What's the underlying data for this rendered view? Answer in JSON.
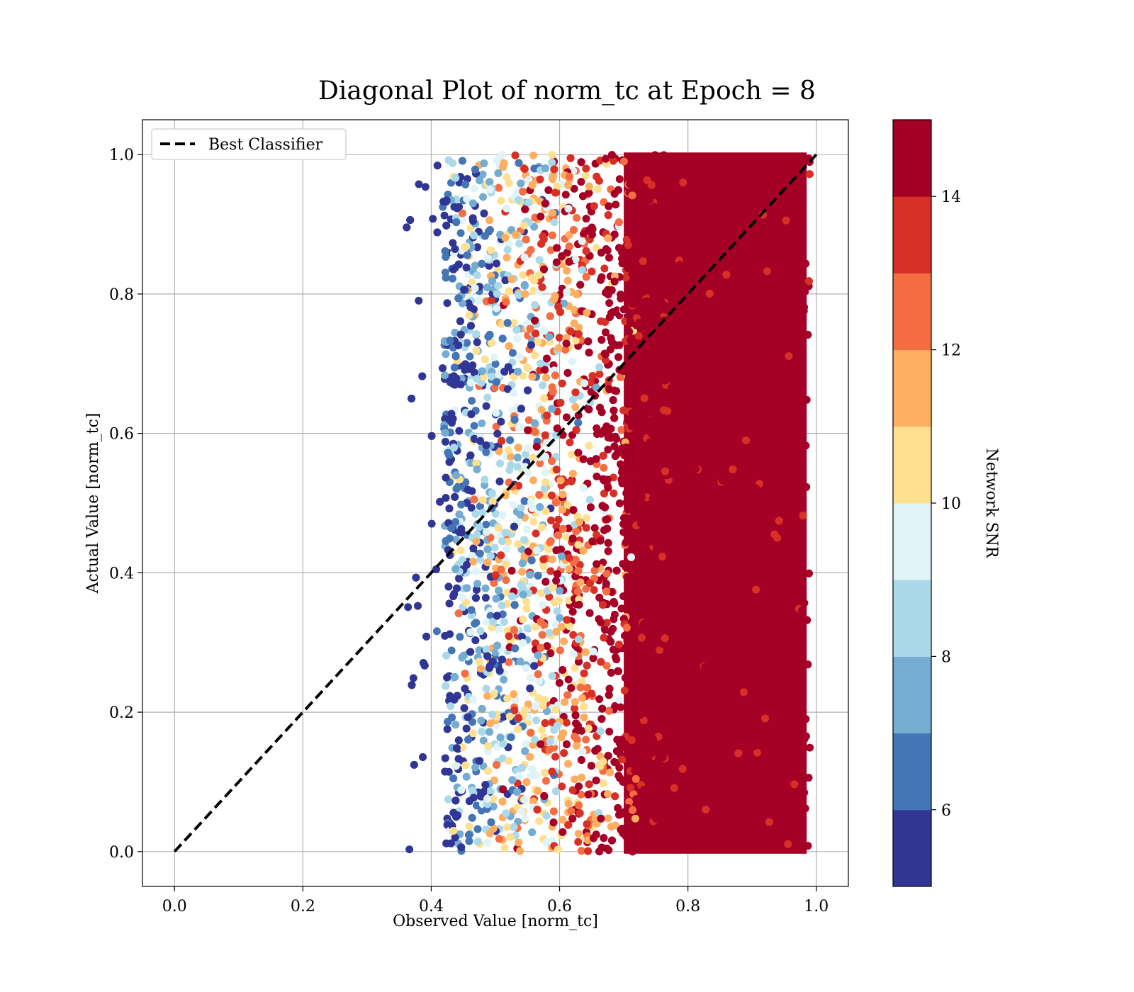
{
  "chart_data": {
    "type": "scatter",
    "title": "Diagonal Plot of norm_tc at Epoch = 8",
    "xlabel": "Observed Value [norm_tc]",
    "ylabel": "Actual Value [norm_tc]",
    "xlim": [
      -0.05,
      1.05
    ],
    "ylim": [
      -0.05,
      1.05
    ],
    "xticks": [
      "0.0",
      "0.2",
      "0.4",
      "0.6",
      "0.8",
      "1.0"
    ],
    "yticks": [
      "0.0",
      "0.2",
      "0.4",
      "0.6",
      "0.8",
      "1.0"
    ],
    "xtick_values": [
      0.0,
      0.2,
      0.4,
      0.6,
      0.8,
      1.0
    ],
    "ytick_values": [
      0.0,
      0.2,
      0.4,
      0.6,
      0.8,
      1.0
    ],
    "grid": true,
    "legend": {
      "placement": "upper left",
      "entries": [
        "Best Classifier"
      ]
    },
    "reference_line": {
      "name": "Best Classifier",
      "style": "dashed",
      "color": "#000000",
      "x": [
        0.0,
        1.0
      ],
      "y": [
        0.0,
        1.0
      ]
    },
    "scatter_summary": {
      "x_range": [
        0.36,
        0.995
      ],
      "y_range": [
        0.0,
        1.0
      ],
      "color_variable": "Network SNR",
      "trend": "Network SNR increases with observed value; points with observed value above ~0.72 are almost all at the top SNR bin"
    },
    "colorbar": {
      "label": "Network SNR",
      "range": [
        5,
        15
      ],
      "ticks": [
        "6",
        "8",
        "10",
        "12",
        "14"
      ],
      "tick_values": [
        6,
        8,
        10,
        12,
        14
      ],
      "colors": [
        "#313695",
        "#4575b4",
        "#74add1",
        "#abd9e9",
        "#e0f3f8",
        "#fee090",
        "#fdae61",
        "#f46d43",
        "#d73027",
        "#a50026"
      ]
    }
  }
}
